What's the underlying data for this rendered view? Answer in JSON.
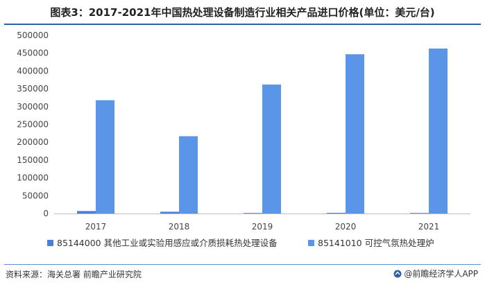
{
  "title": "图表3：2017-2021年中国热处理设备制造行业相关产品进口价格(单位：美元/台)",
  "source": "资料来源：海关总署 前瞻产业研究院",
  "brand": "@前瞻经济学人APP",
  "colors": {
    "series1": "#4a7fdc",
    "series2": "#5b95e8",
    "title_rule": "#2d5fa7"
  },
  "chart_data": {
    "type": "bar",
    "categories": [
      "2017",
      "2018",
      "2019",
      "2020",
      "2021"
    ],
    "series": [
      {
        "name": "85144000 其他工业或实验用感应或介质损耗热处理设备",
        "values": [
          7000,
          5000,
          1500,
          2000,
          1500
        ]
      },
      {
        "name": "85141010 可控气氛热处理炉",
        "values": [
          318000,
          217000,
          362000,
          447000,
          463000
        ]
      }
    ],
    "ylim": [
      0,
      500000
    ],
    "yticks": [
      0,
      50000,
      100000,
      150000,
      200000,
      250000,
      300000,
      350000,
      400000,
      450000,
      500000
    ],
    "grid": false,
    "legend_position": "bottom"
  }
}
